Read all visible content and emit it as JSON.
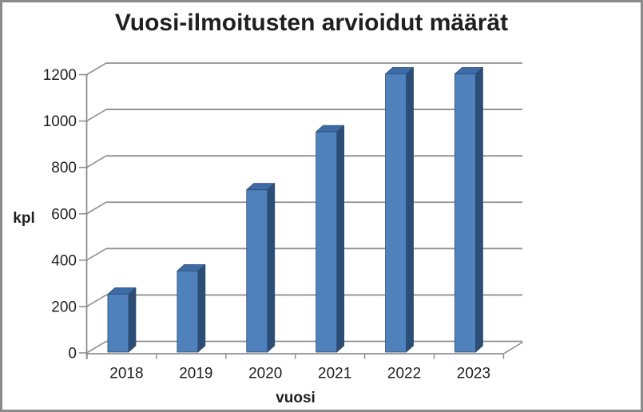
{
  "window": {
    "background": "#ffffff",
    "border_color": "#8a8a8a"
  },
  "chart_data": {
    "type": "bar",
    "title": "Vuosi-ilmoitusten arvioidut määrät",
    "xlabel": "vuosi",
    "ylabel": "kpl",
    "categories": [
      "2018",
      "2019",
      "2020",
      "2021",
      "2022",
      "2023"
    ],
    "values": [
      250,
      350,
      700,
      950,
      1200,
      1200
    ],
    "ylim": [
      0,
      1200
    ],
    "yticks": [
      0,
      200,
      400,
      600,
      800,
      1000,
      1200
    ],
    "grid": true,
    "legend": false,
    "effect": "3d",
    "colors": {
      "bar_front": "#4f81bd",
      "bar_top": "#3d6ba5",
      "bar_side": "#2c4d75",
      "bar_outline": "#2d4d72",
      "gridline": "#8f8f8f",
      "axis": "#8f8f8f",
      "text": "#1f1f1f"
    }
  }
}
